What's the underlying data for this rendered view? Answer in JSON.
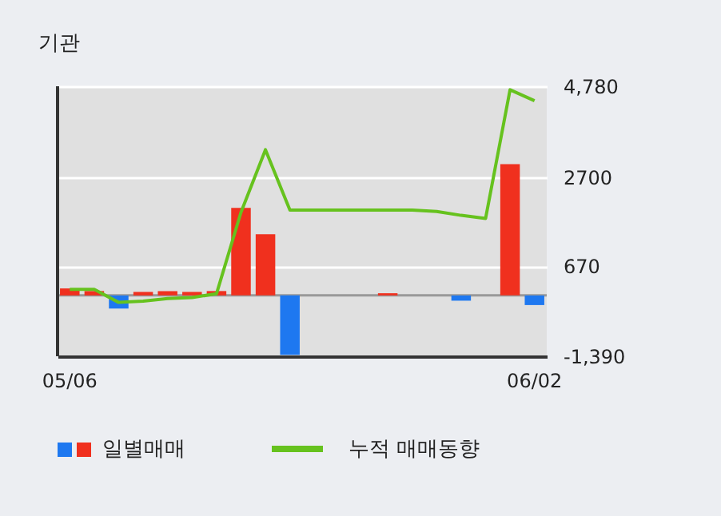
{
  "chart_data": {
    "type": "bar",
    "title": "기관",
    "categories": [
      "05/06",
      null,
      null,
      null,
      null,
      null,
      null,
      null,
      null,
      null,
      null,
      null,
      null,
      null,
      null,
      null,
      null,
      null,
      null,
      "06/02"
    ],
    "series": [
      {
        "name": "일별매매",
        "colors": [
          "#f0301e",
          "#f0301e",
          "#1e78f0",
          "#f0301e",
          "#f0301e",
          "#f0301e",
          "#f0301e",
          "#f0301e",
          "#f0301e",
          "#1e78f0",
          "#f0301e",
          "#f0301e",
          "#f0301e",
          "#f0301e",
          "#f0301e",
          "#f0301e",
          "#1e78f0",
          "#f0301e",
          "#f0301e",
          "#1e78f0"
        ],
        "values": [
          160,
          100,
          -300,
          80,
          100,
          80,
          100,
          2000,
          1400,
          -1360,
          0,
          0,
          0,
          50,
          0,
          0,
          -120,
          0,
          3000,
          -220
        ]
      },
      {
        "name": "누적 매매동향",
        "type": "line",
        "color": "#66c21e",
        "values": [
          140,
          140,
          -160,
          -130,
          -70,
          -50,
          40,
          1900,
          3330,
          1950,
          1950,
          1950,
          1950,
          1950,
          1950,
          1920,
          1830,
          1760,
          4700,
          4450
        ]
      }
    ],
    "ylim": [
      -1390,
      4780
    ],
    "yticks": [
      {
        "value": -1390,
        "label": "-1,390"
      },
      {
        "value": 670,
        "label": "670"
      },
      {
        "value": 2700,
        "label": "2700"
      },
      {
        "value": 4780,
        "label": "4,780"
      }
    ],
    "ref_lines": [
      {
        "axis": "y",
        "value": 0,
        "color": "#999999"
      }
    ],
    "grid": "y",
    "legend": "bottom"
  }
}
